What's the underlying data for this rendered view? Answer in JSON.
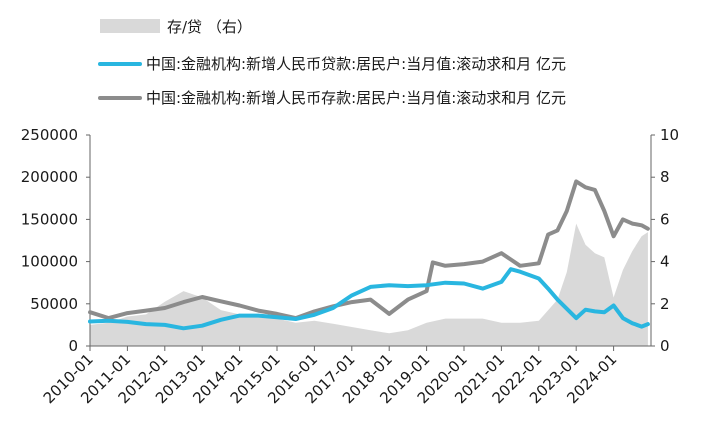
{
  "chart_data": {
    "type": "line",
    "legend": [
      {
        "label": "存/贷 （右）",
        "kind": "area",
        "color": "#d9d9d9"
      },
      {
        "label": "中国:金融机构:新增人民币贷款:居民户:当月值:滚动求和月 亿元",
        "kind": "line",
        "color": "#29b6e0"
      },
      {
        "label": "中国:金融机构:新增人民币存款:居民户:当月值:滚动求和月 亿元",
        "kind": "line",
        "color": "#8c8c8c"
      }
    ],
    "y_left": {
      "min": 0,
      "max": 250000,
      "ticks": [
        "0",
        "50000",
        "100000",
        "150000",
        "200000",
        "250000"
      ]
    },
    "y_right": {
      "min": 0,
      "max": 10,
      "ticks": [
        "0",
        "2",
        "4",
        "6",
        "8",
        "10"
      ]
    },
    "x": {
      "start": "2010-01",
      "end": "2024-12",
      "ticks": [
        "2010-01",
        "2011-01",
        "2012-01",
        "2013-01",
        "2014-01",
        "2015-01",
        "2016-01",
        "2017-01",
        "2018-01",
        "2019-01",
        "2020-01",
        "2021-01",
        "2022-01",
        "2023-01",
        "2024-01"
      ]
    },
    "series": [
      {
        "name": "存/贷 （右）",
        "axis": "right",
        "points": [
          [
            "2010-01",
            1.0
          ],
          [
            "2010-07",
            1.1
          ],
          [
            "2011-01",
            1.4
          ],
          [
            "2011-07",
            1.5
          ],
          [
            "2012-01",
            2.1
          ],
          [
            "2012-07",
            2.6
          ],
          [
            "2013-01",
            2.3
          ],
          [
            "2013-07",
            1.7
          ],
          [
            "2014-01",
            1.5
          ],
          [
            "2014-07",
            1.4
          ],
          [
            "2015-01",
            1.3
          ],
          [
            "2015-07",
            1.1
          ],
          [
            "2016-01",
            1.2
          ],
          [
            "2016-07",
            1.05
          ],
          [
            "2017-01",
            0.9
          ],
          [
            "2017-07",
            0.75
          ],
          [
            "2018-01",
            0.6
          ],
          [
            "2018-07",
            0.75
          ],
          [
            "2019-01",
            1.1
          ],
          [
            "2019-07",
            1.3
          ],
          [
            "2020-01",
            1.3
          ],
          [
            "2020-07",
            1.3
          ],
          [
            "2021-01",
            1.1
          ],
          [
            "2021-07",
            1.1
          ],
          [
            "2022-01",
            1.2
          ],
          [
            "2022-07",
            2.2
          ],
          [
            "2022-10",
            3.5
          ],
          [
            "2023-01",
            5.8
          ],
          [
            "2023-04",
            4.8
          ],
          [
            "2023-07",
            4.4
          ],
          [
            "2023-10",
            4.2
          ],
          [
            "2024-01",
            2.3
          ],
          [
            "2024-04",
            3.6
          ],
          [
            "2024-07",
            4.5
          ],
          [
            "2024-10",
            5.2
          ],
          [
            "2024-12",
            5.4
          ]
        ]
      },
      {
        "name": "中国:金融机构:新增人民币贷款:居民户:当月值:滚动求和月 亿元",
        "axis": "left",
        "points": [
          [
            "2010-01",
            29000
          ],
          [
            "2010-07",
            30000
          ],
          [
            "2011-01",
            28500
          ],
          [
            "2011-07",
            26000
          ],
          [
            "2012-01",
            25000
          ],
          [
            "2012-07",
            21000
          ],
          [
            "2013-01",
            24000
          ],
          [
            "2013-07",
            31000
          ],
          [
            "2014-01",
            36000
          ],
          [
            "2014-07",
            36000
          ],
          [
            "2015-01",
            34000
          ],
          [
            "2015-07",
            32000
          ],
          [
            "2016-01",
            37000
          ],
          [
            "2016-07",
            45000
          ],
          [
            "2017-01",
            60000
          ],
          [
            "2017-07",
            70000
          ],
          [
            "2018-01",
            72000
          ],
          [
            "2018-07",
            71000
          ],
          [
            "2019-01",
            72000
          ],
          [
            "2019-07",
            75000
          ],
          [
            "2020-01",
            74000
          ],
          [
            "2020-07",
            68000
          ],
          [
            "2021-01",
            76000
          ],
          [
            "2021-04",
            91000
          ],
          [
            "2021-07",
            88000
          ],
          [
            "2022-01",
            80000
          ],
          [
            "2022-04",
            68000
          ],
          [
            "2022-07",
            55000
          ],
          [
            "2023-01",
            33000
          ],
          [
            "2023-04",
            43000
          ],
          [
            "2023-07",
            41000
          ],
          [
            "2023-10",
            40000
          ],
          [
            "2024-01",
            48000
          ],
          [
            "2024-04",
            33000
          ],
          [
            "2024-07",
            27000
          ],
          [
            "2024-10",
            23000
          ],
          [
            "2024-12",
            26000
          ]
        ]
      },
      {
        "name": "中国:金融机构:新增人民币存款:居民户:当月值:滚动求和月 亿元",
        "axis": "left",
        "points": [
          [
            "2010-01",
            40000
          ],
          [
            "2010-07",
            33000
          ],
          [
            "2011-01",
            39000
          ],
          [
            "2011-07",
            42000
          ],
          [
            "2012-01",
            45000
          ],
          [
            "2012-07",
            52000
          ],
          [
            "2013-01",
            58000
          ],
          [
            "2013-07",
            53000
          ],
          [
            "2014-01",
            48000
          ],
          [
            "2014-07",
            42000
          ],
          [
            "2015-01",
            38000
          ],
          [
            "2015-07",
            33000
          ],
          [
            "2016-01",
            41000
          ],
          [
            "2016-07",
            47000
          ],
          [
            "2017-01",
            52000
          ],
          [
            "2017-07",
            55000
          ],
          [
            "2018-01",
            38000
          ],
          [
            "2018-07",
            55000
          ],
          [
            "2019-01",
            65000
          ],
          [
            "2019-03",
            99000
          ],
          [
            "2019-07",
            95000
          ],
          [
            "2020-01",
            97000
          ],
          [
            "2020-07",
            100000
          ],
          [
            "2021-01",
            110000
          ],
          [
            "2021-07",
            95000
          ],
          [
            "2022-01",
            98000
          ],
          [
            "2022-04",
            132000
          ],
          [
            "2022-07",
            137000
          ],
          [
            "2022-10",
            160000
          ],
          [
            "2023-01",
            195000
          ],
          [
            "2023-04",
            188000
          ],
          [
            "2023-07",
            185000
          ],
          [
            "2023-10",
            160000
          ],
          [
            "2024-01",
            130000
          ],
          [
            "2024-04",
            150000
          ],
          [
            "2024-07",
            145000
          ],
          [
            "2024-10",
            143000
          ],
          [
            "2024-12",
            139000
          ]
        ]
      }
    ]
  }
}
